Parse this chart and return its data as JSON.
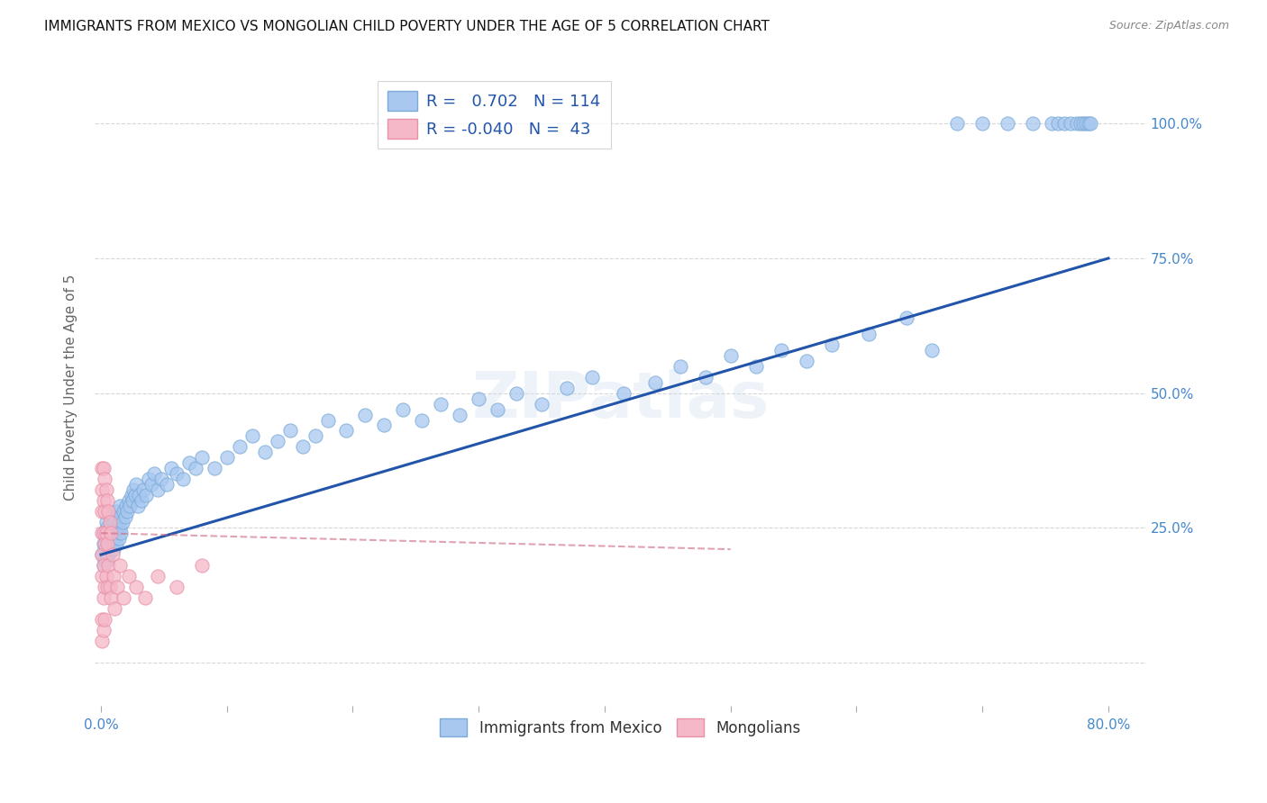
{
  "title": "IMMIGRANTS FROM MEXICO VS MONGOLIAN CHILD POVERTY UNDER THE AGE OF 5 CORRELATION CHART",
  "source": "Source: ZipAtlas.com",
  "ylabel": "Child Poverty Under the Age of 5",
  "legend_blue_r": "0.702",
  "legend_blue_n": "114",
  "legend_pink_r": "-0.040",
  "legend_pink_n": "43",
  "legend_blue_label": "Immigrants from Mexico",
  "legend_pink_label": "Mongolians",
  "blue_color": "#a8c8f0",
  "blue_edge_color": "#7aaad8",
  "blue_line_color": "#2255aa",
  "pink_color": "#f5b8c8",
  "pink_edge_color": "#e890a8",
  "pink_line_color": "#cc6680",
  "background_color": "#ffffff",
  "grid_color": "#cccccc",
  "tick_color": "#4488cc",
  "blue_scatter_x": [
    0.001,
    0.002,
    0.002,
    0.003,
    0.003,
    0.003,
    0.004,
    0.004,
    0.004,
    0.005,
    0.005,
    0.005,
    0.006,
    0.006,
    0.007,
    0.007,
    0.007,
    0.008,
    0.008,
    0.009,
    0.009,
    0.01,
    0.01,
    0.01,
    0.011,
    0.011,
    0.012,
    0.012,
    0.013,
    0.013,
    0.014,
    0.014,
    0.015,
    0.015,
    0.016,
    0.016,
    0.017,
    0.018,
    0.019,
    0.02,
    0.021,
    0.022,
    0.023,
    0.024,
    0.025,
    0.026,
    0.027,
    0.028,
    0.029,
    0.03,
    0.032,
    0.034,
    0.036,
    0.038,
    0.04,
    0.042,
    0.045,
    0.048,
    0.052,
    0.056,
    0.06,
    0.065,
    0.07,
    0.075,
    0.08,
    0.09,
    0.1,
    0.11,
    0.12,
    0.13,
    0.14,
    0.15,
    0.16,
    0.17,
    0.18,
    0.195,
    0.21,
    0.225,
    0.24,
    0.255,
    0.27,
    0.285,
    0.3,
    0.315,
    0.33,
    0.35,
    0.37,
    0.39,
    0.415,
    0.44,
    0.46,
    0.48,
    0.5,
    0.52,
    0.54,
    0.56,
    0.58,
    0.61,
    0.64,
    0.66,
    0.68,
    0.7,
    0.72,
    0.74,
    0.755,
    0.76,
    0.765,
    0.77,
    0.775,
    0.778,
    0.78,
    0.782,
    0.784,
    0.786
  ],
  "blue_scatter_y": [
    0.2,
    0.18,
    0.22,
    0.19,
    0.21,
    0.24,
    0.2,
    0.23,
    0.26,
    0.19,
    0.22,
    0.25,
    0.2,
    0.23,
    0.21,
    0.24,
    0.27,
    0.22,
    0.25,
    0.23,
    0.26,
    0.21,
    0.24,
    0.27,
    0.23,
    0.26,
    0.22,
    0.25,
    0.24,
    0.28,
    0.23,
    0.26,
    0.25,
    0.29,
    0.24,
    0.27,
    0.26,
    0.28,
    0.27,
    0.29,
    0.28,
    0.3,
    0.29,
    0.31,
    0.3,
    0.32,
    0.31,
    0.33,
    0.29,
    0.31,
    0.3,
    0.32,
    0.31,
    0.34,
    0.33,
    0.35,
    0.32,
    0.34,
    0.33,
    0.36,
    0.35,
    0.34,
    0.37,
    0.36,
    0.38,
    0.36,
    0.38,
    0.4,
    0.42,
    0.39,
    0.41,
    0.43,
    0.4,
    0.42,
    0.45,
    0.43,
    0.46,
    0.44,
    0.47,
    0.45,
    0.48,
    0.46,
    0.49,
    0.47,
    0.5,
    0.48,
    0.51,
    0.53,
    0.5,
    0.52,
    0.55,
    0.53,
    0.57,
    0.55,
    0.58,
    0.56,
    0.59,
    0.61,
    0.64,
    0.58,
    1.0,
    1.0,
    1.0,
    1.0,
    1.0,
    1.0,
    1.0,
    1.0,
    1.0,
    1.0,
    1.0,
    1.0,
    1.0,
    1.0
  ],
  "pink_scatter_x": [
    0.001,
    0.001,
    0.001,
    0.001,
    0.001,
    0.001,
    0.001,
    0.001,
    0.002,
    0.002,
    0.002,
    0.002,
    0.002,
    0.002,
    0.003,
    0.003,
    0.003,
    0.003,
    0.003,
    0.004,
    0.004,
    0.004,
    0.005,
    0.005,
    0.005,
    0.006,
    0.006,
    0.007,
    0.007,
    0.008,
    0.008,
    0.009,
    0.01,
    0.011,
    0.013,
    0.015,
    0.018,
    0.022,
    0.028,
    0.035,
    0.045,
    0.06,
    0.08
  ],
  "pink_scatter_y": [
    0.36,
    0.32,
    0.28,
    0.24,
    0.2,
    0.16,
    0.08,
    0.04,
    0.36,
    0.3,
    0.24,
    0.18,
    0.12,
    0.06,
    0.34,
    0.28,
    0.22,
    0.14,
    0.08,
    0.32,
    0.24,
    0.16,
    0.3,
    0.22,
    0.14,
    0.28,
    0.18,
    0.26,
    0.14,
    0.24,
    0.12,
    0.2,
    0.16,
    0.1,
    0.14,
    0.18,
    0.12,
    0.16,
    0.14,
    0.12,
    0.16,
    0.14,
    0.18
  ],
  "blue_line_x0": 0.0,
  "blue_line_x1": 0.8,
  "blue_line_y0": 0.2,
  "blue_line_y1": 0.75,
  "pink_line_x0": 0.0,
  "pink_line_x1": 0.5,
  "pink_line_y0": 0.24,
  "pink_line_y1": 0.21,
  "xlim": [
    -0.005,
    0.83
  ],
  "ylim": [
    -0.08,
    1.1
  ],
  "title_fontsize": 11,
  "axis_label_fontsize": 11,
  "tick_fontsize": 11,
  "watermark": "ZIPatlas"
}
